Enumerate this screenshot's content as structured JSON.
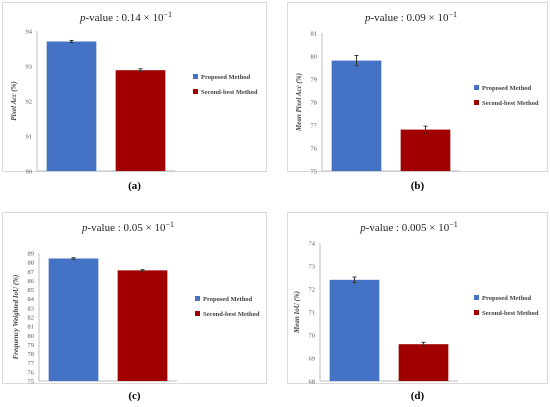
{
  "chart_data": [
    {
      "type": "bar",
      "panel_label": "(a)",
      "title_prefix": "p",
      "title_rest": "-value : 0.14 × 10",
      "title_exp": "−1",
      "ylabel": "Pixel Acc (%)",
      "ylim": [
        90,
        94
      ],
      "yticks": [
        "90",
        "91",
        "92",
        "93",
        "94"
      ],
      "ytick_values": [
        90,
        91,
        92,
        93,
        94
      ],
      "categories": [
        "Proposed Method",
        "Second-best Method"
      ],
      "series": [
        {
          "name": "Proposed Method",
          "value": 93.7,
          "error": 0.03,
          "color": "#4472c4"
        },
        {
          "name": "Second-best Method",
          "value": 92.88,
          "error": 0.04,
          "color": "#a00000"
        }
      ],
      "legend": "right",
      "grid": false
    },
    {
      "type": "bar",
      "panel_label": "(b)",
      "title_prefix": "p",
      "title_rest": "-value : 0.09 × 10",
      "title_exp": "−1",
      "ylabel": "Mean Pixel Acc (%)",
      "ylim": [
        75,
        81
      ],
      "yticks": [
        "75",
        "76",
        "77",
        "78",
        "79",
        "80",
        "81"
      ],
      "ytick_values": [
        75,
        76,
        77,
        78,
        79,
        80,
        81
      ],
      "categories": [
        "Proposed Method",
        "Second-best Method"
      ],
      "series": [
        {
          "name": "Proposed Method",
          "value": 79.8,
          "error": 0.22,
          "color": "#4472c4"
        },
        {
          "name": "Second-best Method",
          "value": 76.8,
          "error": 0.15,
          "color": "#a00000"
        }
      ],
      "legend": "right",
      "grid": false
    },
    {
      "type": "bar",
      "panel_label": "(c)",
      "title_prefix": "p",
      "title_rest": "-value : 0.05 × 10",
      "title_exp": "−1",
      "ylabel": "Frequency Weighted IoU (%)",
      "ylim": [
        75,
        89
      ],
      "yticks": [
        "75",
        "76",
        "77",
        "78",
        "79",
        "80",
        "81",
        "82",
        "83",
        "84",
        "85",
        "86",
        "87",
        "88",
        "89"
      ],
      "ytick_values": [
        75,
        76,
        77,
        78,
        79,
        80,
        81,
        82,
        83,
        84,
        85,
        86,
        87,
        88,
        89
      ],
      "categories": [
        "Proposed Method",
        "Second-best Method"
      ],
      "series": [
        {
          "name": "Proposed Method",
          "value": 88.4,
          "error": 0.08,
          "color": "#4472c4"
        },
        {
          "name": "Second-best Method",
          "value": 87.1,
          "error": 0.08,
          "color": "#a00000"
        }
      ],
      "legend": "right",
      "grid": false
    },
    {
      "type": "bar",
      "panel_label": "(d)",
      "title_prefix": "p",
      "title_rest": "-value : 0.005 × 10",
      "title_exp": "−1",
      "ylabel": "Mean IoU (%)",
      "ylim": [
        68,
        74
      ],
      "yticks": [
        "68",
        "69",
        "70",
        "71",
        "72",
        "73",
        "74"
      ],
      "ytick_values": [
        68,
        69,
        70,
        71,
        72,
        73,
        74
      ],
      "categories": [
        "Proposed Method",
        "Second-best Method"
      ],
      "series": [
        {
          "name": "Proposed Method",
          "value": 72.4,
          "error": 0.12,
          "color": "#4472c4"
        },
        {
          "name": "Second-best Method",
          "value": 69.6,
          "error": 0.08,
          "color": "#a00000"
        }
      ],
      "legend": "right",
      "grid": false
    }
  ]
}
